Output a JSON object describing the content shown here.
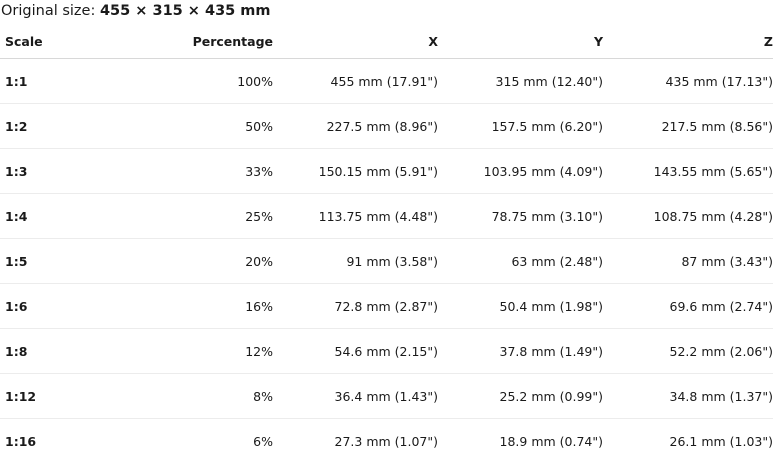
{
  "header": {
    "label": "Original size:",
    "value": "455 × 315 × 435 mm"
  },
  "table": {
    "columns": [
      "Scale",
      "Percentage",
      "X",
      "Y",
      "Z"
    ],
    "rows": [
      [
        "1:1",
        "100%",
        "455 mm (17.91\")",
        "315 mm (12.40\")",
        "435 mm (17.13\")"
      ],
      [
        "1:2",
        "50%",
        "227.5 mm (8.96\")",
        "157.5 mm (6.20\")",
        "217.5 mm (8.56\")"
      ],
      [
        "1:3",
        "33%",
        "150.15 mm (5.91\")",
        "103.95 mm (4.09\")",
        "143.55 mm (5.65\")"
      ],
      [
        "1:4",
        "25%",
        "113.75 mm (4.48\")",
        "78.75 mm (3.10\")",
        "108.75 mm (4.28\")"
      ],
      [
        "1:5",
        "20%",
        "91 mm (3.58\")",
        "63 mm (2.48\")",
        "87 mm (3.43\")"
      ],
      [
        "1:6",
        "16%",
        "72.8 mm (2.87\")",
        "50.4 mm (1.98\")",
        "69.6 mm (2.74\")"
      ],
      [
        "1:8",
        "12%",
        "54.6 mm (2.15\")",
        "37.8 mm (1.49\")",
        "52.2 mm (2.06\")"
      ],
      [
        "1:12",
        "8%",
        "36.4 mm (1.43\")",
        "25.2 mm (0.99\")",
        "34.8 mm (1.37\")"
      ],
      [
        "1:16",
        "6%",
        "27.3 mm (1.07\")",
        "18.9 mm (0.74\")",
        "26.1 mm (1.03\")"
      ]
    ]
  }
}
